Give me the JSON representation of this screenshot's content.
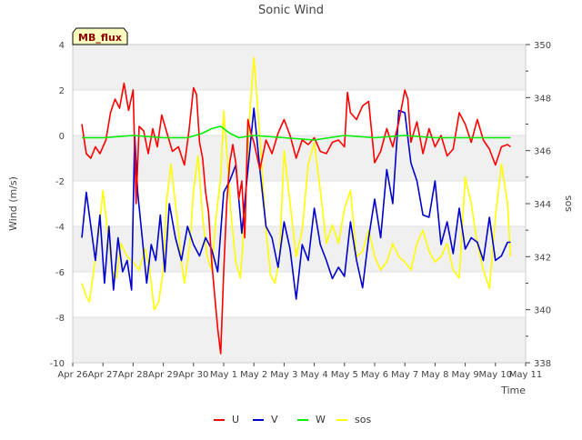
{
  "chart_data": {
    "type": "line",
    "title": "Sonic Wind",
    "site_label": "MB_flux",
    "xlabel": "Time",
    "ylabel": "Wind (m/s)",
    "y2label": "sos",
    "xlim": [
      0,
      15
    ],
    "ylim": [
      -10,
      4
    ],
    "y2lim": [
      338,
      350
    ],
    "x_ticks": [
      {
        "x": 0,
        "label": "Apr 26"
      },
      {
        "x": 1,
        "label": "Apr 27"
      },
      {
        "x": 2,
        "label": "Apr 28"
      },
      {
        "x": 3,
        "label": "Apr 29"
      },
      {
        "x": 4,
        "label": "Apr 30"
      },
      {
        "x": 5,
        "label": "May 1"
      },
      {
        "x": 6,
        "label": "May 2"
      },
      {
        "x": 7,
        "label": "May 3"
      },
      {
        "x": 8,
        "label": "May 4"
      },
      {
        "x": 9,
        "label": "May 5"
      },
      {
        "x": 10,
        "label": "May 6"
      },
      {
        "x": 11,
        "label": "May 7"
      },
      {
        "x": 12,
        "label": "May 8"
      },
      {
        "x": 13,
        "label": "May 9"
      },
      {
        "x": 14,
        "label": "May 10"
      },
      {
        "x": 15,
        "label": "May 11"
      }
    ],
    "y_ticks": [
      {
        "v": -10,
        "label": "-10"
      },
      {
        "v": -8,
        "label": "-8"
      },
      {
        "v": -6,
        "label": "-6"
      },
      {
        "v": -4,
        "label": "-4"
      },
      {
        "v": -2,
        "label": "-2"
      },
      {
        "v": 0,
        "label": "0"
      },
      {
        "v": 2,
        "label": "2"
      },
      {
        "v": 4,
        "label": "4"
      }
    ],
    "y2_ticks": [
      {
        "v": 338,
        "label": "338"
      },
      {
        "v": 340,
        "label": "340"
      },
      {
        "v": 342,
        "label": "342"
      },
      {
        "v": 344,
        "label": "344"
      },
      {
        "v": 346,
        "label": "346"
      },
      {
        "v": 348,
        "label": "348"
      },
      {
        "v": 350,
        "label": "350"
      }
    ],
    "bands": [
      [
        -10,
        -8
      ],
      [
        -6,
        -4
      ],
      [
        -2,
        0
      ],
      [
        2,
        4
      ]
    ],
    "legend": [
      {
        "name": "U",
        "color": "#ff0000"
      },
      {
        "name": "V",
        "color": "#0000cc"
      },
      {
        "name": "W",
        "color": "#00ee00"
      },
      {
        "name": "sos",
        "color": "#ffff00"
      }
    ],
    "series": [
      {
        "name": "U",
        "axis": "left",
        "color": "#ff0000",
        "x": [
          0.3,
          0.45,
          0.6,
          0.75,
          0.9,
          1.1,
          1.25,
          1.4,
          1.55,
          1.7,
          1.85,
          2.0,
          2.1,
          2.2,
          2.35,
          2.5,
          2.65,
          2.8,
          2.95,
          3.1,
          3.3,
          3.5,
          3.7,
          3.85,
          4.0,
          4.1,
          4.2,
          4.3,
          4.4,
          4.5,
          4.6,
          4.7,
          4.8,
          4.9,
          5.0,
          5.1,
          5.2,
          5.3,
          5.4,
          5.5,
          5.6,
          5.7,
          5.8,
          5.9,
          6.0,
          6.2,
          6.4,
          6.6,
          6.8,
          7.0,
          7.2,
          7.4,
          7.6,
          7.8,
          8.0,
          8.2,
          8.4,
          8.6,
          8.8,
          9.0,
          9.1,
          9.2,
          9.4,
          9.6,
          9.8,
          10.0,
          10.2,
          10.4,
          10.6,
          10.8,
          11.0,
          11.1,
          11.2,
          11.4,
          11.6,
          11.8,
          12.0,
          12.2,
          12.4,
          12.6,
          12.8,
          13.0,
          13.2,
          13.4,
          13.6,
          13.8,
          14.0,
          14.2,
          14.4,
          14.5
        ],
        "y": [
          0.5,
          -0.8,
          -1.0,
          -0.5,
          -0.8,
          -0.2,
          1.0,
          1.6,
          1.2,
          2.3,
          1.1,
          2.0,
          -3.0,
          0.4,
          0.2,
          -0.8,
          0.3,
          -0.5,
          0.9,
          0.2,
          -0.7,
          -0.5,
          -1.3,
          0.2,
          2.1,
          1.8,
          -0.3,
          -1.0,
          -2.5,
          -3.4,
          -5.5,
          -7.0,
          -8.5,
          -9.6,
          -6.0,
          -3.0,
          -1.2,
          -0.4,
          -1.2,
          -2.8,
          -2.0,
          -4.5,
          0.7,
          0.1,
          -0.3,
          -1.5,
          -0.2,
          -0.8,
          0.1,
          0.7,
          0.0,
          -1.0,
          -0.2,
          -0.4,
          -0.1,
          -0.7,
          -0.8,
          -0.3,
          -0.2,
          -0.5,
          1.9,
          1.0,
          0.7,
          1.3,
          1.5,
          -1.2,
          -0.7,
          0.3,
          -0.5,
          0.6,
          2.0,
          1.6,
          -0.3,
          0.6,
          -0.8,
          0.3,
          -0.5,
          0.0,
          -0.9,
          -0.6,
          1.0,
          0.5,
          -0.3,
          0.7,
          -0.2,
          -0.6,
          -1.3,
          -0.5,
          -0.4,
          -0.5
        ]
      },
      {
        "name": "V",
        "axis": "left",
        "color": "#0000cc",
        "x": [
          0.3,
          0.45,
          0.6,
          0.75,
          0.9,
          1.05,
          1.2,
          1.35,
          1.5,
          1.65,
          1.8,
          1.95,
          2.05,
          2.15,
          2.3,
          2.45,
          2.6,
          2.75,
          2.9,
          3.05,
          3.2,
          3.4,
          3.6,
          3.8,
          4.0,
          4.2,
          4.4,
          4.6,
          4.8,
          5.0,
          5.2,
          5.4,
          5.6,
          5.8,
          6.0,
          6.2,
          6.4,
          6.6,
          6.8,
          7.0,
          7.2,
          7.4,
          7.6,
          7.8,
          8.0,
          8.2,
          8.4,
          8.6,
          8.8,
          9.0,
          9.2,
          9.4,
          9.6,
          9.8,
          10.0,
          10.2,
          10.4,
          10.6,
          10.8,
          11.0,
          11.2,
          11.4,
          11.6,
          11.8,
          12.0,
          12.2,
          12.4,
          12.6,
          12.8,
          13.0,
          13.2,
          13.4,
          13.6,
          13.8,
          14.0,
          14.2,
          14.4,
          14.5
        ],
        "y": [
          -4.5,
          -2.5,
          -4.0,
          -5.5,
          -3.5,
          -6.5,
          -4.0,
          -6.8,
          -4.5,
          -6.0,
          -5.5,
          -6.8,
          0.0,
          -2.5,
          -4.5,
          -6.5,
          -4.8,
          -5.5,
          -3.5,
          -6.0,
          -3.0,
          -4.5,
          -5.5,
          -4.0,
          -4.8,
          -5.3,
          -4.5,
          -5.0,
          -6.0,
          -2.5,
          -2.0,
          -1.3,
          -4.3,
          -1.5,
          1.2,
          -1.5,
          -4.0,
          -4.5,
          -5.8,
          -3.8,
          -5.0,
          -7.2,
          -4.8,
          -5.5,
          -3.2,
          -4.8,
          -5.5,
          -6.3,
          -5.8,
          -6.2,
          -3.8,
          -5.5,
          -6.7,
          -4.5,
          -2.8,
          -4.5,
          -1.5,
          -3.0,
          1.1,
          1.0,
          -1.2,
          -2.0,
          -3.5,
          -3.6,
          -2.0,
          -4.8,
          -3.8,
          -5.2,
          -3.2,
          -5.0,
          -4.5,
          -4.7,
          -5.5,
          -3.6,
          -5.5,
          -5.3,
          -4.7,
          -4.7
        ]
      },
      {
        "name": "W",
        "axis": "left",
        "color": "#00ee00",
        "x": [
          0.3,
          1.0,
          2.0,
          3.0,
          3.8,
          4.3,
          4.6,
          4.9,
          5.2,
          5.5,
          6.0,
          7.0,
          8.0,
          9.0,
          10.0,
          11.0,
          12.0,
          13.0,
          14.0,
          14.5
        ],
        "y": [
          -0.1,
          -0.1,
          0.0,
          -0.1,
          -0.1,
          0.1,
          0.3,
          0.4,
          0.1,
          -0.1,
          0.0,
          -0.1,
          -0.2,
          0.0,
          -0.1,
          0.0,
          -0.1,
          -0.1,
          -0.1,
          -0.1
        ]
      },
      {
        "name": "sos",
        "axis": "right",
        "color": "#ffff00",
        "x": [
          0.3,
          0.45,
          0.55,
          0.7,
          0.9,
          1.0,
          1.15,
          1.3,
          1.45,
          1.6,
          1.8,
          2.0,
          2.2,
          2.4,
          2.55,
          2.7,
          2.85,
          3.0,
          3.1,
          3.25,
          3.4,
          3.5,
          3.6,
          3.7,
          3.8,
          3.9,
          4.0,
          4.15,
          4.3,
          4.45,
          4.6,
          4.75,
          4.9,
          5.0,
          5.1,
          5.25,
          5.4,
          5.55,
          5.7,
          5.85,
          6.0,
          6.2,
          6.4,
          6.55,
          6.7,
          6.85,
          7.0,
          7.2,
          7.4,
          7.6,
          7.8,
          8.0,
          8.2,
          8.4,
          8.6,
          8.8,
          9.0,
          9.2,
          9.4,
          9.6,
          9.8,
          10.0,
          10.2,
          10.4,
          10.6,
          10.8,
          11.0,
          11.2,
          11.4,
          11.6,
          11.8,
          12.0,
          12.2,
          12.4,
          12.6,
          12.8,
          13.0,
          13.2,
          13.4,
          13.6,
          13.8,
          14.0,
          14.2,
          14.4,
          14.5
        ],
        "y": [
          341.0,
          340.5,
          340.3,
          341.5,
          343.3,
          344.5,
          343.0,
          341.5,
          341.2,
          342.5,
          342.0,
          341.8,
          341.5,
          342.3,
          341.5,
          340.0,
          340.3,
          341.5,
          344.0,
          345.5,
          344.0,
          343.0,
          341.8,
          341.0,
          341.8,
          342.8,
          344.5,
          345.8,
          343.5,
          342.0,
          341.5,
          343.5,
          345.0,
          347.5,
          346.0,
          343.5,
          341.8,
          341.2,
          343.5,
          347.2,
          349.5,
          346.5,
          343.0,
          341.3,
          341.0,
          342.0,
          346.0,
          344.0,
          342.0,
          343.0,
          345.5,
          346.3,
          344.5,
          342.5,
          343.2,
          342.5,
          343.8,
          344.5,
          342.0,
          342.2,
          343.0,
          342.0,
          341.5,
          341.8,
          342.5,
          342.0,
          341.8,
          341.5,
          342.5,
          343.0,
          342.2,
          341.8,
          342.0,
          342.5,
          341.5,
          341.2,
          345.0,
          344.0,
          342.5,
          341.5,
          340.8,
          343.5,
          345.5,
          344.0,
          342.0
        ]
      }
    ]
  }
}
